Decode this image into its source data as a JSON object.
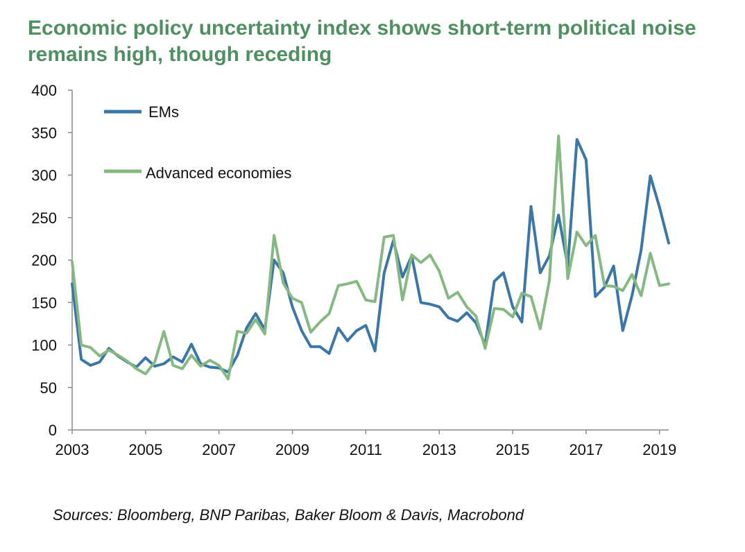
{
  "title": "Economic policy uncertainty index shows short-term political noise remains high, though receding",
  "source": "Sources: Bloomberg, BNP Paribas, Baker Bloom & Davis, Macrobond",
  "colors": {
    "title": "#4f8f62",
    "ems": "#3a76a8",
    "advanced": "#86b882",
    "axis": "#888888"
  },
  "chart_data": {
    "type": "line",
    "title": "Economic policy uncertainty index shows short-term political noise remains high, though receding",
    "xlabel": "",
    "ylabel": "",
    "xlim": [
      2003,
      2019.25
    ],
    "ylim": [
      0,
      400
    ],
    "yticks": [
      0,
      50,
      100,
      150,
      200,
      250,
      300,
      350,
      400
    ],
    "xticks": [
      2003,
      2005,
      2007,
      2009,
      2011,
      2013,
      2015,
      2017,
      2019
    ],
    "xtick_labels": [
      "2003",
      "2005",
      "2007",
      "2009",
      "2011",
      "2013",
      "2015",
      "2017",
      "2019"
    ],
    "ytick_labels": [
      "0",
      "50",
      "100",
      "150",
      "200",
      "250",
      "300",
      "350",
      "400"
    ],
    "grid": false,
    "legend": "top-left",
    "x": [
      2003.0,
      2003.25,
      2003.5,
      2003.75,
      2004.0,
      2004.25,
      2004.5,
      2004.75,
      2005.0,
      2005.25,
      2005.5,
      2005.75,
      2006.0,
      2006.25,
      2006.5,
      2006.75,
      2007.0,
      2007.25,
      2007.5,
      2007.75,
      2008.0,
      2008.25,
      2008.5,
      2008.75,
      2009.0,
      2009.25,
      2009.5,
      2009.75,
      2010.0,
      2010.25,
      2010.5,
      2010.75,
      2011.0,
      2011.25,
      2011.5,
      2011.75,
      2012.0,
      2012.25,
      2012.5,
      2012.75,
      2013.0,
      2013.25,
      2013.5,
      2013.75,
      2014.0,
      2014.25,
      2014.5,
      2014.75,
      2015.0,
      2015.25,
      2015.5,
      2015.75,
      2016.0,
      2016.25,
      2016.5,
      2016.75,
      2017.0,
      2017.25,
      2017.5,
      2017.75,
      2018.0,
      2018.25,
      2018.5,
      2018.75,
      2019.0,
      2019.25
    ],
    "series": [
      {
        "name": "EMs",
        "values": [
          172,
          83,
          76,
          80,
          96,
          87,
          80,
          74,
          85,
          75,
          78,
          86,
          80,
          101,
          78,
          74,
          73,
          68,
          88,
          120,
          137,
          118,
          200,
          185,
          145,
          117,
          98,
          98,
          90,
          120,
          105,
          117,
          123,
          93,
          185,
          223,
          180,
          205,
          150,
          148,
          145,
          132,
          128,
          138,
          126,
          100,
          175,
          185,
          145,
          127,
          263,
          185,
          205,
          253,
          193,
          342,
          318,
          157,
          168,
          193,
          117,
          158,
          212,
          299,
          262,
          220
        ]
      },
      {
        "name": "Advanced economies",
        "values": [
          198,
          100,
          97,
          87,
          94,
          88,
          81,
          72,
          66,
          80,
          116,
          76,
          72,
          88,
          75,
          82,
          76,
          60,
          116,
          114,
          130,
          113,
          229,
          173,
          155,
          150,
          115,
          127,
          137,
          170,
          172,
          175,
          153,
          151,
          227,
          229,
          153,
          206,
          197,
          206,
          187,
          155,
          162,
          145,
          134,
          96,
          143,
          142,
          133,
          161,
          157,
          119,
          176,
          346,
          178,
          233,
          217,
          229,
          170,
          169,
          164,
          183,
          158,
          208,
          170,
          172
        ]
      }
    ]
  }
}
